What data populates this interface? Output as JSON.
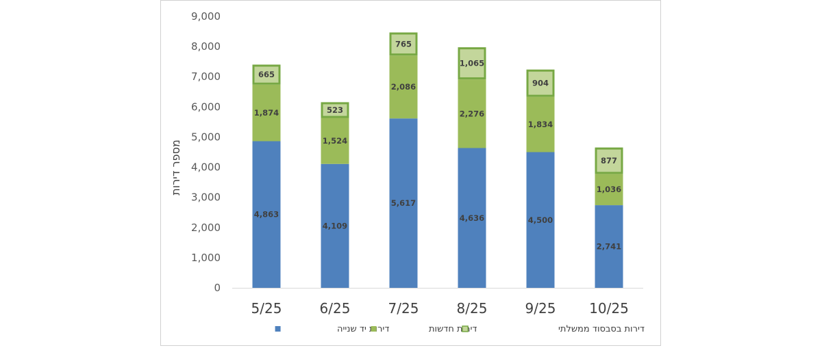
{
  "chart_data": {
    "type": "bar",
    "stacked": true,
    "categories": [
      "5/25",
      "6/25",
      "7/25",
      "8/25",
      "9/25",
      "10/25"
    ],
    "series": [
      {
        "name": "דירות יד שנייה",
        "values": [
          4863,
          4109,
          5617,
          4636,
          4500,
          2741
        ],
        "color": "#4f81bd"
      },
      {
        "name": "דירות חדשות",
        "values": [
          1874,
          1524,
          2086,
          2276,
          1834,
          1036
        ],
        "color": "#9bbb59"
      },
      {
        "name": "דירות בסבסוד ממשלתי",
        "values": [
          665,
          523,
          765,
          1065,
          904,
          877
        ],
        "color": "#c3d69b",
        "border": "#77a844"
      }
    ],
    "ylabel": "מספר דירות",
    "ylim": [
      0,
      9000
    ],
    "yticks": [
      "0",
      "1,000",
      "2,000",
      "3,000",
      "4,000",
      "5,000",
      "6,000",
      "7,000",
      "8,000",
      "9,000"
    ],
    "grid": false,
    "legend_position": "bottom"
  }
}
